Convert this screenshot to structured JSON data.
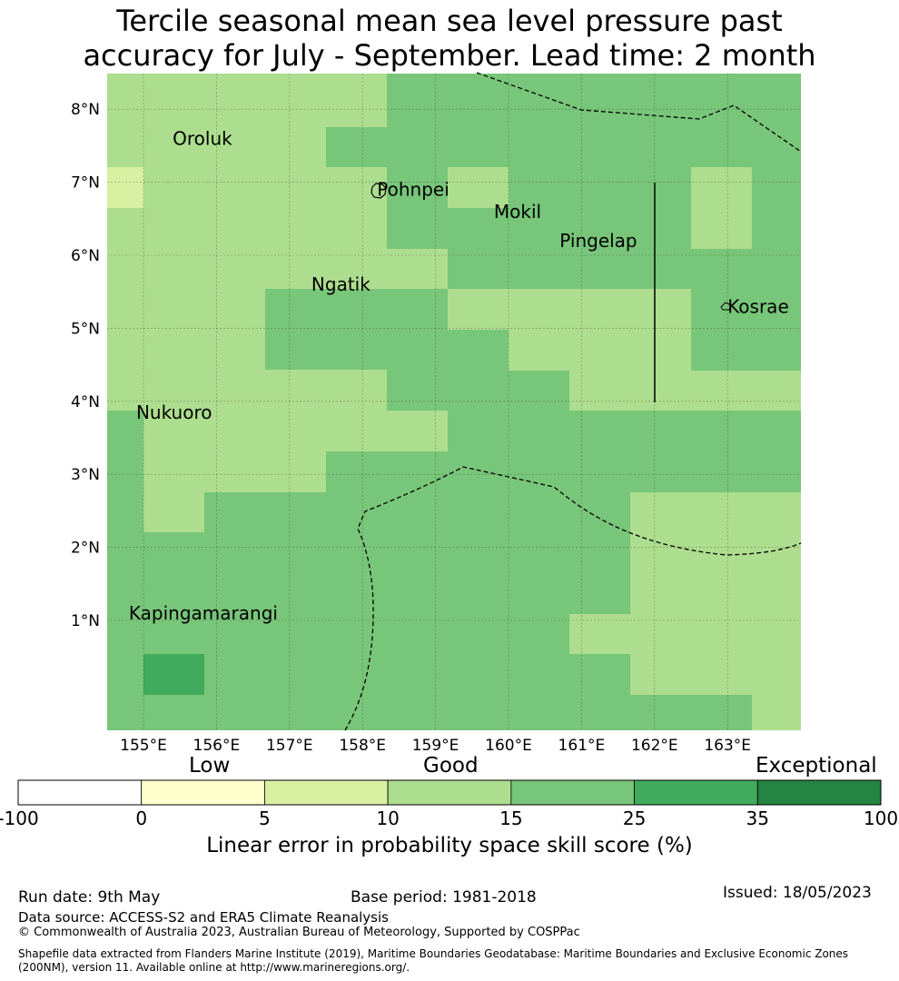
{
  "title": {
    "line1": "Tercile seasonal mean sea level pressure past",
    "line2": "accuracy for July - September. Lead time: 2 month"
  },
  "map": {
    "x_ticks": [
      "155°E",
      "156°E",
      "157°E",
      "158°E",
      "159°E",
      "160°E",
      "161°E",
      "162°E",
      "163°E"
    ],
    "y_ticks": [
      "1°N",
      "2°N",
      "3°N",
      "4°N",
      "5°N",
      "6°N",
      "7°N",
      "8°N"
    ],
    "places": [
      {
        "name": "Oroluk",
        "lon": 155.4,
        "lat": 7.6
      },
      {
        "name": "Pohnpei",
        "lon": 158.2,
        "lat": 6.9
      },
      {
        "name": "Mokil",
        "lon": 159.8,
        "lat": 6.6
      },
      {
        "name": "Pingelap",
        "lon": 160.7,
        "lat": 6.2
      },
      {
        "name": "Ngatik",
        "lon": 157.3,
        "lat": 5.6
      },
      {
        "name": "Kosrae",
        "lon": 163.0,
        "lat": 5.3
      },
      {
        "name": "Nukuoro",
        "lon": 154.9,
        "lat": 3.85
      },
      {
        "name": "Kapingamarangi",
        "lon": 154.8,
        "lat": 1.1
      }
    ],
    "cell_categories": [
      "Good 10-15",
      "Good 15-25",
      "Low 5-10",
      "Exceptional 25-35"
    ]
  },
  "colorbar": {
    "categories": [
      "Low",
      "Good",
      "Exceptional"
    ],
    "ticks": [
      "-100",
      "0",
      "5",
      "10",
      "15",
      "25",
      "35",
      "100"
    ],
    "colors": [
      "#ffffff",
      "#ffffcc",
      "#d9f0a3",
      "#addd8e",
      "#78c679",
      "#41ab5d",
      "#238443"
    ],
    "label": "Linear error in probability space skill score (%)"
  },
  "footer": {
    "run_date": "Run date: 9th May",
    "base_period": "Base period: 1981-2018",
    "issued": "Issued: 18/05/2023",
    "data_source": "Data source: ACCESS-S2 and ERA5 Climate Reanalysis",
    "copyright": "© Commonwealth of Australia 2023, Australian Bureau of Meteorology, Supported by COSPPac",
    "shapefile": "Shapefile data extracted from Flanders Marine Institute (2019), Maritime Boundaries Geodatabase: Maritime Boundaries and Exclusive Economic Zones (200NM), version 11. Available online at http://www.marineregions.org/."
  }
}
